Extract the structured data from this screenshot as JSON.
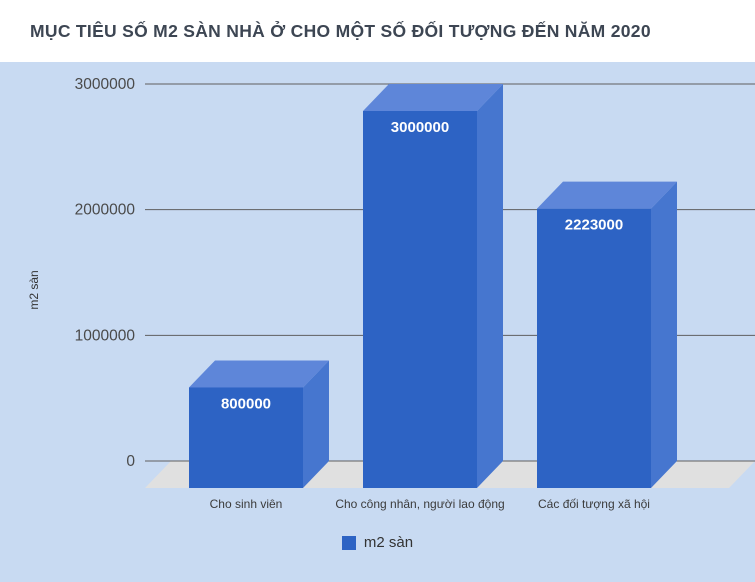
{
  "header": {
    "title": "MỤC TIÊU SỐ M2 SÀN NHÀ Ở CHO MỘT SỐ ĐỐI TƯỢNG ĐẾN NĂM 2020"
  },
  "legend": {
    "label": "m2 sàn"
  },
  "chart_data": {
    "type": "bar",
    "style": "3d-column",
    "title": "MỤC TIÊU SỐ M2 SÀN NHÀ Ở CHO MỘT SỐ ĐỐI TƯỢNG ĐẾN NĂM 2020",
    "categories": [
      "Cho sinh viên",
      "Cho công nhân, người lao động",
      "Các đối tượng xã hội"
    ],
    "values": [
      800000,
      3000000,
      2223000
    ],
    "bar_labels": [
      "800000",
      "3000000",
      "2223000"
    ],
    "series_name": "m2 sàn",
    "xlabel": "",
    "ylabel": "m2 sàn",
    "ylim": [
      0,
      3000000
    ],
    "yticks": [
      0,
      1000000,
      2000000,
      3000000
    ],
    "grid": true,
    "legend_position": "bottom",
    "colors": {
      "background": "#c8daf2",
      "header_background": "#ffffff",
      "bar_front": "#2d63c4",
      "bar_top": "#5e86d9",
      "bar_side": "#4676cf",
      "floor": "#e0e0e0",
      "gridline": "#5f5f5f",
      "tick_text": "#4a4a4a",
      "bar_label_text": "#ffffff"
    }
  }
}
